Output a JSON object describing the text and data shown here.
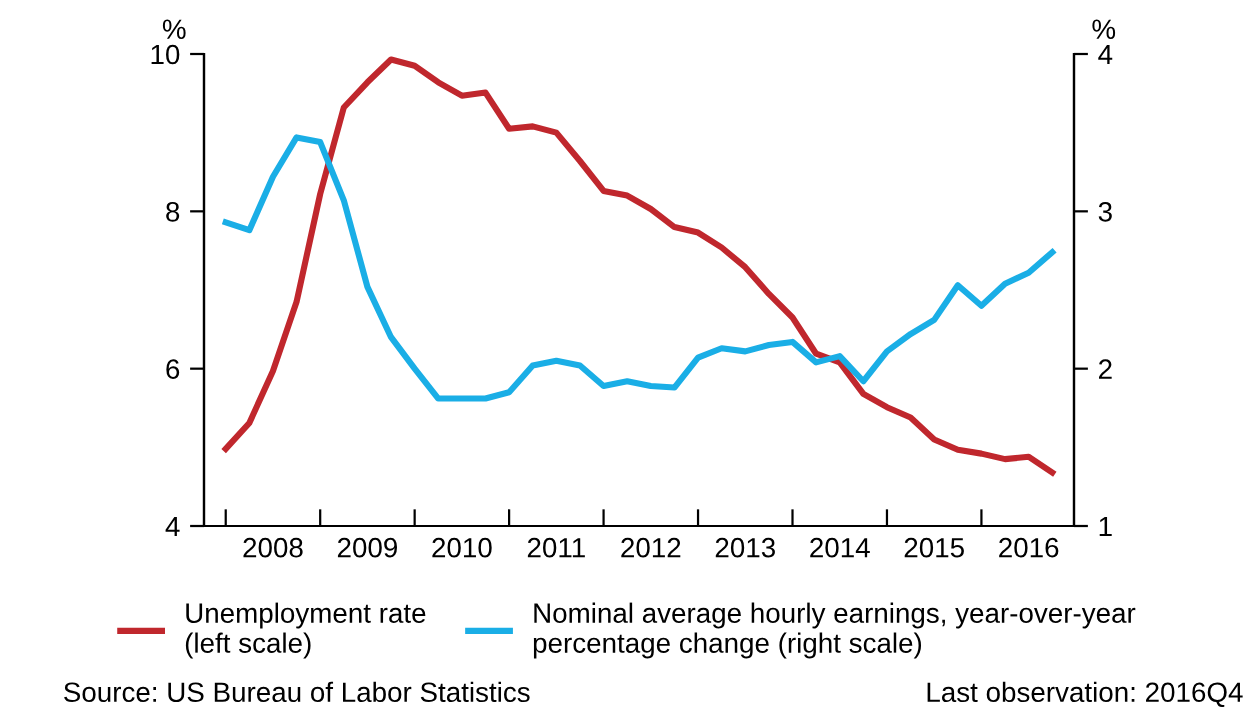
{
  "chart_data": {
    "type": "line",
    "x": [
      2008,
      2008.25,
      2008.5,
      2008.75,
      2009,
      2009.25,
      2009.5,
      2009.75,
      2010,
      2010.25,
      2010.5,
      2010.75,
      2011,
      2011.25,
      2011.5,
      2011.75,
      2012,
      2012.25,
      2012.5,
      2012.75,
      2013,
      2013.25,
      2013.5,
      2013.75,
      2014,
      2014.25,
      2014.5,
      2014.75,
      2015,
      2015.25,
      2015.5,
      2015.75,
      2016,
      2016.25,
      2016.5,
      2016.75
    ],
    "series": [
      {
        "name": "Unemployment rate\n(left scale)",
        "color": "#c0272d",
        "axis": "y",
        "values": [
          4.98,
          5.31,
          5.97,
          6.85,
          8.22,
          9.32,
          9.64,
          9.93,
          9.85,
          9.64,
          9.47,
          9.51,
          9.05,
          9.08,
          9.0,
          8.64,
          8.26,
          8.2,
          8.03,
          7.8,
          7.73,
          7.54,
          7.29,
          6.95,
          6.65,
          6.19,
          6.08,
          5.68,
          5.51,
          5.38,
          5.1,
          4.97,
          4.92,
          4.85,
          4.88,
          4.68
        ]
      },
      {
        "name": "Nominal average hourly earnings, year-over-year\npercentage change (right scale)",
        "color": "#1aaee6",
        "axis": "y2",
        "values": [
          2.93,
          2.88,
          3.22,
          3.47,
          3.44,
          3.07,
          2.52,
          2.2,
          2.0,
          1.81,
          1.81,
          1.81,
          1.85,
          2.02,
          2.05,
          2.02,
          1.89,
          1.92,
          1.89,
          1.88,
          2.07,
          2.13,
          2.11,
          2.15,
          2.17,
          2.04,
          2.08,
          1.92,
          2.11,
          2.22,
          2.31,
          2.53,
          2.4,
          2.54,
          2.61,
          2.74
        ]
      }
    ],
    "ylabel": "%",
    "y2label": "%",
    "xlim": [
      2007.77,
      2016.98
    ],
    "xticks": [
      {
        "value": 2008,
        "label": null
      },
      {
        "value": 2008.5,
        "label": "2008"
      },
      {
        "value": 2009,
        "label": null
      },
      {
        "value": 2009.5,
        "label": "2009"
      },
      {
        "value": 2010,
        "label": null
      },
      {
        "value": 2010.5,
        "label": "2010"
      },
      {
        "value": 2011,
        "label": null
      },
      {
        "value": 2011.5,
        "label": "2011"
      },
      {
        "value": 2012,
        "label": null
      },
      {
        "value": 2012.5,
        "label": "2012"
      },
      {
        "value": 2013,
        "label": null
      },
      {
        "value": 2013.5,
        "label": "2013"
      },
      {
        "value": 2014,
        "label": null
      },
      {
        "value": 2014.5,
        "label": "2014"
      },
      {
        "value": 2015,
        "label": null
      },
      {
        "value": 2015.5,
        "label": "2015"
      },
      {
        "value": 2016,
        "label": null
      },
      {
        "value": 2016.5,
        "label": "2016"
      }
    ],
    "ylim": [
      4,
      10
    ],
    "yticks": [
      4,
      6,
      8,
      10
    ],
    "y2lim": [
      1,
      4
    ],
    "y2ticks": [
      1,
      2,
      3,
      4
    ],
    "grid": false,
    "legend": "bottom",
    "marker": "none",
    "line_style": "solid",
    "annotations": [
      "Source: US Bureau of Labor Statistics",
      "Last observation: 2016Q4"
    ]
  }
}
